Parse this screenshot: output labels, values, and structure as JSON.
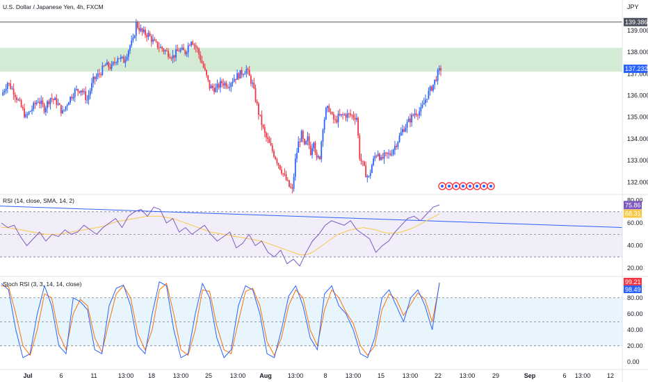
{
  "symbol_title": "U.S. Dollar / Japanese Yen, 4h, FXCM",
  "currency_label": "JPY",
  "colors": {
    "up": "#2962ff",
    "down": "#f23645",
    "zone_fill": "#c8e6c9",
    "rsi_line": "#7e57c2",
    "rsi_ma": "#f7c948",
    "trendline": "#2962ff",
    "rsi_band": "#ede7f6",
    "stoch_band": "#e3f2fd",
    "stoch_k": "#2962ff",
    "stoch_d": "#ff6d00",
    "grid": "#e0e3eb",
    "hline": "#50535e"
  },
  "chart_data": [
    {
      "type": "candlestick",
      "title": "U.S. Dollar / Japanese Yen, 4h, FXCM",
      "ylim": [
        131.5,
        139.7
      ],
      "y_ticks": [
        132.0,
        133.0,
        134.0,
        135.0,
        136.0,
        137.0,
        138.0,
        139.0
      ],
      "supply_zone": [
        137.1,
        138.2
      ],
      "horizontal_line": 139.386,
      "price_tags": [
        {
          "label": "139.386",
          "value": 139.386,
          "color": "#50535e"
        },
        {
          "label": "137.232",
          "value": 137.232,
          "color": "#2962ff"
        }
      ],
      "close_path": [
        [
          0,
          136.0
        ],
        [
          4,
          136.6
        ],
        [
          8,
          136.2
        ],
        [
          12,
          135.6
        ],
        [
          16,
          135.0
        ],
        [
          20,
          135.4
        ],
        [
          24,
          135.8
        ],
        [
          28,
          135.4
        ],
        [
          32,
          135.9
        ],
        [
          36,
          135.7
        ],
        [
          40,
          135.2
        ],
        [
          44,
          135.8
        ],
        [
          48,
          136.2
        ],
        [
          52,
          136.3
        ],
        [
          56,
          135.8
        ],
        [
          60,
          136.7
        ],
        [
          64,
          137.0
        ],
        [
          68,
          137.4
        ],
        [
          72,
          137.3
        ],
        [
          76,
          137.8
        ],
        [
          80,
          137.6
        ],
        [
          84,
          138.3
        ],
        [
          86,
          138.5
        ],
        [
          88,
          139.3
        ],
        [
          92,
          138.9
        ],
        [
          96,
          138.8
        ],
        [
          100,
          138.4
        ],
        [
          104,
          138.2
        ],
        [
          108,
          138.0
        ],
        [
          112,
          137.8
        ],
        [
          116,
          138.1
        ],
        [
          120,
          138.0
        ],
        [
          124,
          138.6
        ],
        [
          128,
          138.1
        ],
        [
          132,
          137.3
        ],
        [
          136,
          136.4
        ],
        [
          140,
          136.3
        ],
        [
          144,
          136.6
        ],
        [
          148,
          136.5
        ],
        [
          152,
          136.8
        ],
        [
          156,
          137.0
        ],
        [
          160,
          137.2
        ],
        [
          164,
          136.5
        ],
        [
          168,
          135.2
        ],
        [
          172,
          134.2
        ],
        [
          176,
          133.6
        ],
        [
          180,
          133.0
        ],
        [
          184,
          132.4
        ],
        [
          188,
          131.8
        ],
        [
          190,
          131.6
        ],
        [
          192,
          133.0
        ],
        [
          194,
          133.8
        ],
        [
          196,
          134.2
        ],
        [
          198,
          133.6
        ],
        [
          200,
          134.0
        ],
        [
          202,
          133.4
        ],
        [
          204,
          134.0
        ],
        [
          206,
          133.0
        ],
        [
          208,
          133.2
        ],
        [
          210,
          134.6
        ],
        [
          212,
          135.3
        ],
        [
          214,
          135.4
        ],
        [
          216,
          135.0
        ],
        [
          218,
          134.8
        ],
        [
          220,
          135.0
        ],
        [
          224,
          135.1
        ],
        [
          228,
          135.1
        ],
        [
          232,
          135.0
        ],
        [
          234,
          133.2
        ],
        [
          236,
          132.8
        ],
        [
          238,
          132.4
        ],
        [
          240,
          132.2
        ],
        [
          242,
          132.8
        ],
        [
          244,
          133.2
        ],
        [
          246,
          133.4
        ],
        [
          248,
          133.0
        ],
        [
          250,
          133.2
        ],
        [
          254,
          133.3
        ],
        [
          258,
          133.8
        ],
        [
          262,
          134.4
        ],
        [
          266,
          134.8
        ],
        [
          270,
          135.2
        ],
        [
          274,
          135.3
        ],
        [
          278,
          136.0
        ],
        [
          282,
          136.5
        ],
        [
          285,
          137.0
        ],
        [
          287,
          137.23
        ]
      ],
      "x_ticks": [
        "Jul",
        "6",
        "11",
        "13:00",
        "18",
        "13:00",
        "25",
        "13:00",
        "Aug",
        "13:00",
        "8",
        "13:00",
        "15",
        "13:00",
        "22",
        "13:00",
        "29",
        "Sep",
        "6",
        "13:00",
        "12"
      ]
    },
    {
      "type": "line",
      "title": "RSI (14, close, SMA, 14, 2)",
      "ylim": [
        14,
        84
      ],
      "y_ticks": [
        20.0,
        40.0,
        60.0,
        80.0
      ],
      "bands": [
        30,
        50,
        70
      ],
      "trendline": [
        [
          0,
          75
        ],
        [
          320,
          56
        ]
      ],
      "series": [
        {
          "name": "RSI",
          "values": [
            60,
            56,
            58,
            48,
            40,
            46,
            52,
            44,
            50,
            48,
            54,
            50,
            52,
            58,
            54,
            50,
            56,
            60,
            64,
            56,
            66,
            70,
            72,
            66,
            74,
            72,
            60,
            64,
            52,
            56,
            50,
            54,
            58,
            50,
            44,
            48,
            52,
            38,
            42,
            50,
            40,
            44,
            34,
            30,
            36,
            24,
            28,
            22,
            34,
            44,
            50,
            58,
            62,
            60,
            58,
            62,
            54,
            50,
            46,
            34,
            40,
            44,
            52,
            58,
            64,
            66,
            62,
            68,
            74,
            76
          ]
        },
        {
          "name": "MA",
          "values": [
            56,
            56,
            55,
            54,
            53,
            52,
            51,
            50,
            50,
            50,
            51,
            52,
            53,
            54,
            55,
            56,
            57,
            59,
            61,
            62,
            63,
            64,
            65,
            66,
            66,
            66,
            65,
            64,
            62,
            60,
            58,
            56,
            54,
            52,
            51,
            50,
            49,
            48,
            47,
            46,
            45,
            44,
            42,
            40,
            38,
            36,
            34,
            32,
            32,
            34,
            38,
            42,
            46,
            50,
            52,
            54,
            55,
            56,
            55,
            54,
            52,
            51,
            51,
            52,
            54,
            56,
            59,
            62,
            65,
            68
          ]
        }
      ],
      "value_tags": [
        {
          "label": "75.86",
          "value": 75.86,
          "color": "#7e57c2"
        },
        {
          "label": "68.31",
          "value": 68.31,
          "color": "#f7c948"
        }
      ]
    },
    {
      "type": "line",
      "title": "Stoch RSI (3, 3, 14, 14, close)",
      "ylim": [
        -8,
        105
      ],
      "y_ticks": [
        0.0,
        20.0,
        40.0,
        60.0,
        80.0
      ],
      "bands": [
        20,
        50,
        80
      ],
      "series": [
        {
          "name": "%K",
          "values": [
            98,
            90,
            40,
            5,
            10,
            60,
            95,
            70,
            20,
            10,
            80,
            75,
            65,
            15,
            10,
            70,
            92,
            96,
            70,
            20,
            10,
            60,
            100,
            95,
            40,
            5,
            10,
            60,
            98,
            80,
            30,
            5,
            15,
            70,
            95,
            90,
            60,
            10,
            5,
            40,
            82,
            95,
            70,
            30,
            15,
            85,
            95,
            70,
            60,
            40,
            10,
            5,
            30,
            80,
            90,
            70,
            50,
            80,
            90,
            70,
            40,
            99
          ]
        },
        {
          "name": "%D",
          "values": [
            95,
            94,
            60,
            20,
            8,
            40,
            85,
            80,
            35,
            15,
            60,
            78,
            70,
            30,
            12,
            50,
            85,
            95,
            80,
            35,
            15,
            40,
            90,
            98,
            60,
            15,
            8,
            40,
            90,
            88,
            45,
            15,
            10,
            50,
            88,
            92,
            70,
            25,
            8,
            30,
            70,
            90,
            80,
            40,
            20,
            65,
            90,
            80,
            62,
            48,
            20,
            8,
            20,
            65,
            85,
            78,
            58,
            72,
            86,
            78,
            50,
            97
          ]
        }
      ],
      "value_tags": [
        {
          "label": "99.21",
          "value": 99.21,
          "color": "#f23645"
        },
        {
          "label": "98.49",
          "value": 98.49,
          "color": "#2962ff"
        }
      ]
    }
  ],
  "indicator_legends": {
    "rsi": "RSI (14, close, SMA, 14, 2)",
    "stoch": "Stoch RSI (3, 3, 14, 14, close)"
  }
}
